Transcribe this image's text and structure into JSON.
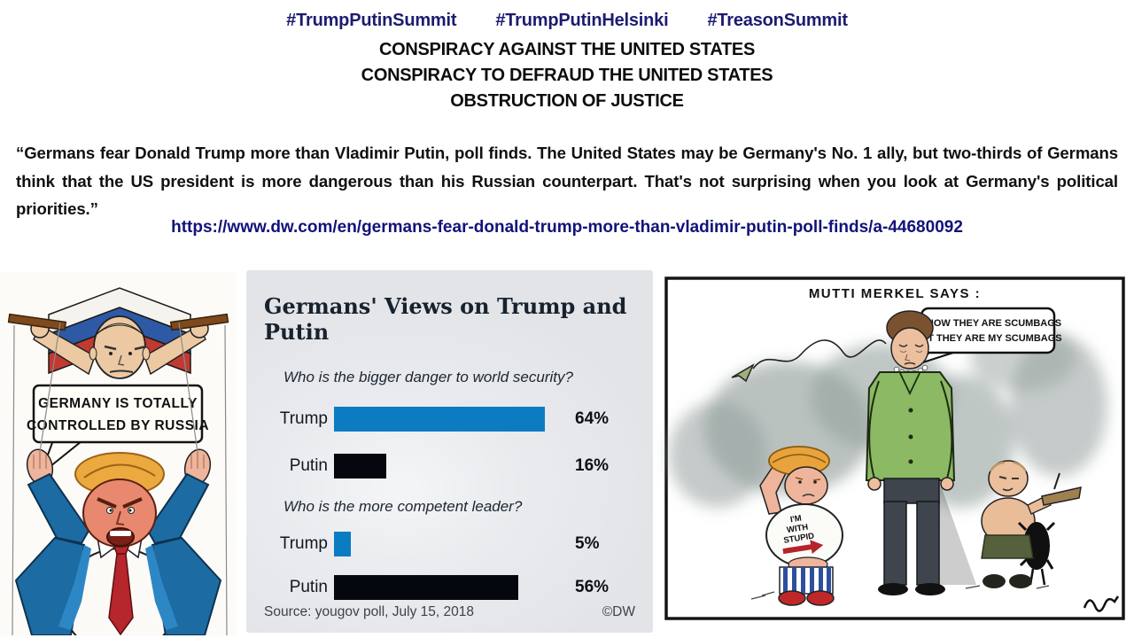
{
  "header": {
    "hashtags": [
      "#TrumpPutinSummit",
      "#TrumpPutinHelsinki",
      "#TreasonSummit"
    ],
    "charges": [
      "CONSPIRACY AGAINST THE UNITED STATES",
      "CONSPIRACY TO DEFRAUD THE UNITED STATES",
      "OBSTRUCTION OF JUSTICE"
    ]
  },
  "quote": {
    "text": "“Germans fear Donald Trump more than Vladimir Putin, poll finds. The United States may be Germany's No. 1 ally, but two-thirds of Germans think that the US president is more dangerous than his Russian counterpart. That's not surprising when you look at Germany's political priorities.”",
    "link": "https://www.dw.com/en/germans-fear-donald-trump-more-than-vladimir-putin-poll-finds/a-44680092"
  },
  "left_cartoon": {
    "sign_lines": [
      "GERMANY IS TOTALLY",
      "CONTROLLED BY RUSSIA"
    ]
  },
  "right_cartoon": {
    "caption": "MUTTI MERKEL SAYS :",
    "bubble_lines": [
      "I KNOW THEY ARE SCUMBAGS",
      "BUT THEY ARE MY SCUMBAGS"
    ],
    "tshirt_lines": [
      "I'M",
      "WITH",
      "STUPID"
    ]
  },
  "chart_data": {
    "type": "bar",
    "orientation": "horizontal",
    "title": "Germans' Views on Trump and Putin",
    "questions": [
      {
        "question": "Who is the bigger danger to world security?",
        "categories": [
          "Trump",
          "Putin"
        ],
        "values": [
          64,
          16
        ],
        "value_labels": [
          "64%",
          "16%"
        ]
      },
      {
        "question": "Who is the more competent leader?",
        "categories": [
          "Trump",
          "Putin"
        ],
        "values": [
          5,
          56
        ],
        "value_labels": [
          "5%",
          "56%"
        ]
      }
    ],
    "xlim": [
      0,
      70
    ],
    "bar_colors": {
      "Trump": "#0b7cc2",
      "Putin": "#05070e"
    },
    "grid": false,
    "legend": false,
    "source": "Source: yougov poll, July 15, 2018",
    "credit": "©DW"
  },
  "colors": {
    "hashtag_navy": "#1c1c70",
    "link_navy": "#12127a",
    "headline_black": "#0d0d0d",
    "chart_background": "#e4e6e9",
    "chart_title_navy": "#17222e",
    "bar_blue": "#0b7cc2",
    "bar_black": "#05070e",
    "merkel_green": "#8cb964",
    "trump_tie_red": "#b6262c",
    "trump_jacket_blue": "#1d6ba3"
  }
}
